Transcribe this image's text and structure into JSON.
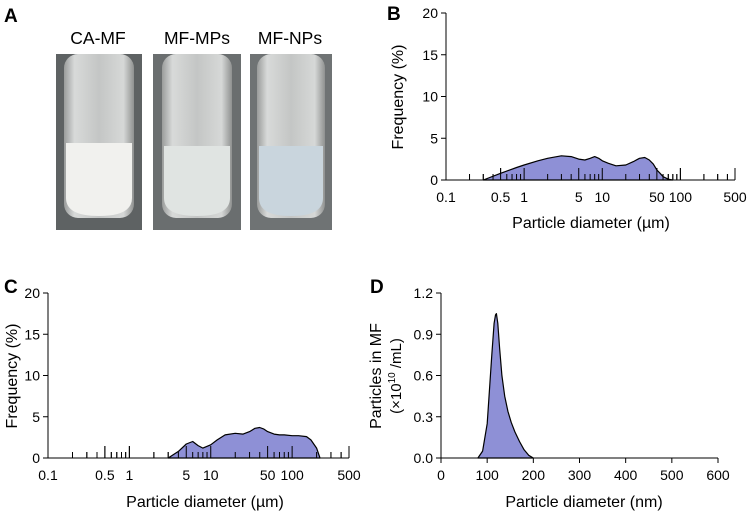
{
  "panels": {
    "a": {
      "letter": "A",
      "tubes": [
        {
          "label": "CA-MF",
          "liquid": "#f1f1ee",
          "headspace": "#c9cbca"
        },
        {
          "label": "MF-MPs",
          "liquid": "#e0e4e2",
          "headspace": "#c6cac9"
        },
        {
          "label": "MF-NPs",
          "liquid": "#c9d5dd",
          "headspace": "#c2c7ca"
        }
      ]
    },
    "b": {
      "letter": "B"
    },
    "c": {
      "letter": "C"
    },
    "d": {
      "letter": "D"
    }
  },
  "colors": {
    "fill": "#8e90d6",
    "stroke": "#000000"
  },
  "chart_data": [
    {
      "id": "B",
      "type": "area",
      "title": "",
      "xlabel": "Particle diameter (µm)",
      "ylabel": "Frequency (%)",
      "xscale": "log",
      "xlim": [
        0.1,
        500
      ],
      "ylim": [
        0,
        20
      ],
      "x_ticks": [
        0.1,
        0.5,
        1,
        5,
        10,
        50,
        100,
        500
      ],
      "x_tick_labels": [
        "0.1",
        "0.5",
        "1",
        "5",
        "10",
        "50",
        "100",
        "500"
      ],
      "y_ticks": [
        0,
        5,
        10,
        15,
        20
      ],
      "y_tick_labels": [
        "0",
        "5",
        "10",
        "15",
        "20"
      ],
      "series": [
        {
          "name": "MF-MPs",
          "x": [
            0.3,
            0.5,
            0.8,
            1,
            1.5,
            2,
            3,
            4,
            5,
            6,
            7,
            8,
            9,
            10,
            12,
            15,
            20,
            25,
            30,
            35,
            40,
            45,
            50,
            55,
            60,
            70,
            80
          ],
          "y": [
            0,
            0.8,
            1.5,
            1.8,
            2.3,
            2.6,
            2.9,
            2.8,
            2.5,
            2.4,
            2.6,
            2.8,
            2.6,
            2.3,
            2.0,
            1.7,
            1.8,
            2.2,
            2.6,
            2.7,
            2.4,
            1.9,
            1.2,
            0.8,
            0.4,
            0.1,
            0
          ]
        }
      ]
    },
    {
      "id": "C",
      "type": "area",
      "title": "",
      "xlabel": "Particle diameter (µm)",
      "ylabel": "Frequency (%)",
      "xscale": "log",
      "xlim": [
        0.1,
        500
      ],
      "ylim": [
        0,
        20
      ],
      "x_ticks": [
        0.1,
        0.5,
        1,
        5,
        10,
        50,
        100,
        500
      ],
      "x_tick_labels": [
        "0.1",
        "0.5",
        "1",
        "5",
        "10",
        "50",
        "100",
        "500"
      ],
      "y_ticks": [
        0,
        5,
        10,
        15,
        20
      ],
      "y_tick_labels": [
        "0",
        "5",
        "10",
        "15",
        "20"
      ],
      "series": [
        {
          "name": "CA-MF",
          "x": [
            3,
            4,
            5,
            6,
            7,
            8,
            10,
            12,
            15,
            20,
            25,
            30,
            35,
            40,
            45,
            50,
            60,
            70,
            80,
            100,
            120,
            150,
            170,
            200,
            220
          ],
          "y": [
            0,
            0.8,
            1.7,
            2.0,
            1.5,
            1.2,
            1.6,
            2.2,
            2.8,
            3.0,
            2.9,
            3.2,
            3.6,
            3.7,
            3.5,
            3.2,
            2.9,
            2.8,
            2.8,
            2.7,
            2.7,
            2.6,
            2.2,
            1.2,
            0
          ]
        }
      ]
    },
    {
      "id": "D",
      "type": "area",
      "title": "",
      "xlabel": "Particle diameter (nm)",
      "ylabel": "Particles in MF",
      "ylabel2": "(×10",
      "ylabel2_sup": "10",
      "ylabel2_end": " /mL)",
      "xscale": "linear",
      "xlim": [
        0,
        600
      ],
      "ylim": [
        0,
        1.2
      ],
      "x_ticks": [
        0,
        100,
        200,
        300,
        400,
        500,
        600
      ],
      "x_tick_labels": [
        "0",
        "100",
        "200",
        "300",
        "400",
        "500",
        "600"
      ],
      "y_ticks": [
        0,
        0.3,
        0.6,
        0.9,
        1.2
      ],
      "y_tick_labels": [
        "0.0",
        "0.3",
        "0.6",
        "0.9",
        "1.2"
      ],
      "series": [
        {
          "name": "MF-NPs",
          "x": [
            80,
            90,
            100,
            105,
            110,
            115,
            118,
            120,
            123,
            127,
            132,
            138,
            145,
            152,
            160,
            170,
            180,
            190,
            200
          ],
          "y": [
            0,
            0.05,
            0.25,
            0.5,
            0.75,
            0.98,
            1.04,
            1.05,
            0.98,
            0.8,
            0.6,
            0.45,
            0.34,
            0.26,
            0.19,
            0.12,
            0.06,
            0.02,
            0
          ]
        }
      ]
    }
  ]
}
